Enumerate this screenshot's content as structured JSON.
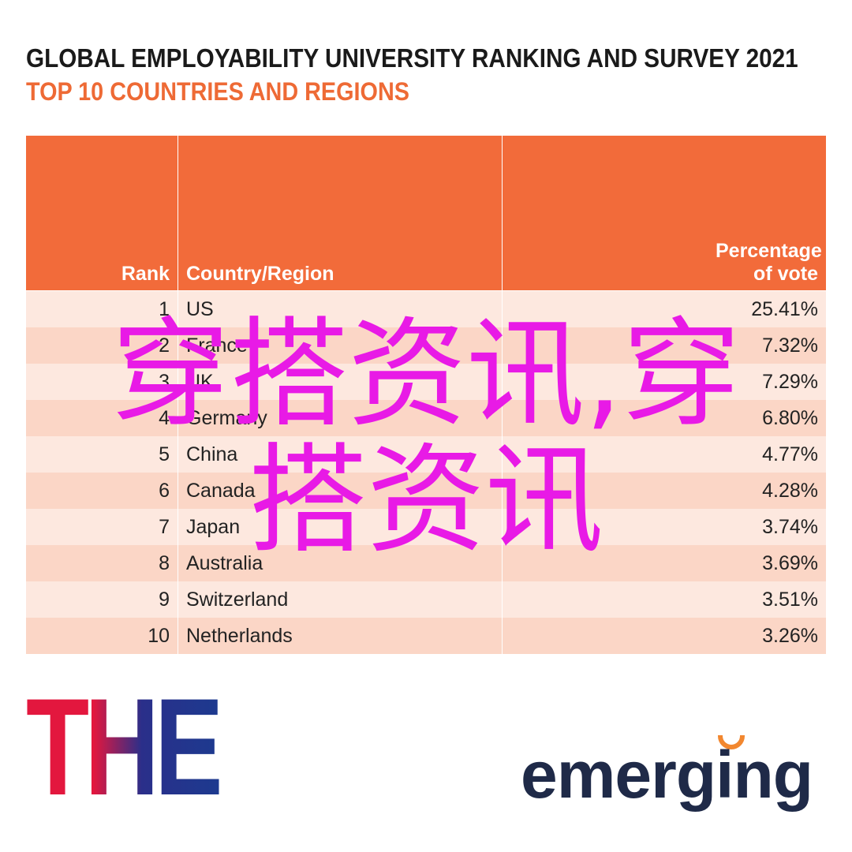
{
  "header": {
    "title": "GLOBAL EMPLOYABILITY UNIVERSITY RANKING AND SURVEY 2021",
    "subtitle": "TOP 10 COUNTRIES AND REGIONS"
  },
  "table": {
    "columns": [
      "Rank",
      "Country/Region",
      "Percentage of vote"
    ],
    "rows": [
      [
        "1",
        "US",
        "25.41%"
      ],
      [
        "2",
        "France",
        "7.32%"
      ],
      [
        "3",
        "UK",
        "7.29%"
      ],
      [
        "4",
        "Germany",
        "6.80%"
      ],
      [
        "5",
        "China",
        "4.77%"
      ],
      [
        "6",
        "Canada",
        "4.28%"
      ],
      [
        "7",
        "Japan",
        "3.74%"
      ],
      [
        "8",
        "Australia",
        "3.69%"
      ],
      [
        "9",
        "Switzerland",
        "3.51%"
      ],
      [
        "10",
        "Netherlands",
        "3.26%"
      ]
    ]
  },
  "logos": {
    "left": "THE",
    "right": "emerging"
  },
  "watermark": {
    "lines": [
      "穿搭资讯,穿",
      "搭资讯"
    ]
  }
}
